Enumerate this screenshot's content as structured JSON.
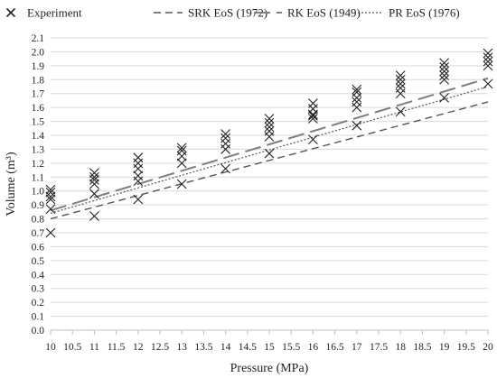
{
  "chart_data": {
    "type": "scatter",
    "title": "",
    "xlabel": "Pressure (MPa)",
    "ylabel": "Volume (m³)",
    "xlim": [
      10,
      20
    ],
    "ylim": [
      0.0,
      2.1
    ],
    "x_ticks": [
      "10",
      "10.5",
      "11",
      "11.5",
      "12",
      "12.5",
      "13",
      "13.5",
      "14",
      "14.5",
      "15",
      "15.5",
      "16",
      "16.5",
      "17",
      "17.5",
      "18",
      "18.5",
      "19",
      "19.5",
      "20"
    ],
    "y_ticks": [
      "0.0",
      "0.1",
      "0.2",
      "0.3",
      "0.4",
      "0.5",
      "0.6",
      "0.7",
      "0.8",
      "0.9",
      "1.0",
      "1.1",
      "1.2",
      "1.3",
      "1.4",
      "1.5",
      "1.6",
      "1.7",
      "1.8",
      "1.9",
      "2.0",
      "2.1"
    ],
    "grid": "horizontal",
    "legend_position": "top",
    "series": [
      {
        "name": "Experiment",
        "kind": "markers",
        "marker": "x",
        "color": "#222222",
        "points": [
          [
            10,
            0.7
          ],
          [
            10,
            0.87
          ],
          [
            10,
            0.94
          ],
          [
            10,
            0.96
          ],
          [
            10,
            0.99
          ],
          [
            10,
            1.01
          ],
          [
            11,
            0.82
          ],
          [
            11,
            0.98
          ],
          [
            11,
            1.05
          ],
          [
            11,
            1.08
          ],
          [
            11,
            1.1
          ],
          [
            11,
            1.13
          ],
          [
            12,
            0.94
          ],
          [
            12,
            1.07
          ],
          [
            12,
            1.11
          ],
          [
            12,
            1.16
          ],
          [
            12,
            1.2
          ],
          [
            12,
            1.24
          ],
          [
            13,
            1.05
          ],
          [
            13,
            1.2
          ],
          [
            13,
            1.25
          ],
          [
            13,
            1.29
          ],
          [
            13,
            1.31
          ],
          [
            14,
            1.16
          ],
          [
            14,
            1.3
          ],
          [
            14,
            1.34
          ],
          [
            14,
            1.38
          ],
          [
            14,
            1.41
          ],
          [
            15,
            1.27
          ],
          [
            15,
            1.39
          ],
          [
            15,
            1.43
          ],
          [
            15,
            1.46
          ],
          [
            15,
            1.49
          ],
          [
            15,
            1.52
          ],
          [
            16,
            1.37
          ],
          [
            16,
            1.52
          ],
          [
            16,
            1.54
          ],
          [
            16,
            1.55
          ],
          [
            16,
            1.59
          ],
          [
            16,
            1.63
          ],
          [
            17,
            1.47
          ],
          [
            17,
            1.6
          ],
          [
            17,
            1.64
          ],
          [
            17,
            1.67
          ],
          [
            17,
            1.71
          ],
          [
            17,
            1.73
          ],
          [
            18,
            1.57
          ],
          [
            18,
            1.7
          ],
          [
            18,
            1.74
          ],
          [
            18,
            1.77
          ],
          [
            18,
            1.8
          ],
          [
            18,
            1.83
          ],
          [
            19,
            1.67
          ],
          [
            19,
            1.8
          ],
          [
            19,
            1.83
          ],
          [
            19,
            1.86
          ],
          [
            19,
            1.89
          ],
          [
            19,
            1.92
          ],
          [
            20,
            1.77
          ],
          [
            20,
            1.9
          ],
          [
            20,
            1.93
          ],
          [
            20,
            1.96
          ],
          [
            20,
            1.99
          ]
        ]
      },
      {
        "name": "SRK EoS (1972)",
        "kind": "line",
        "dash": "8,5",
        "width": 1.4,
        "color": "#555555",
        "x": [
          10,
          20
        ],
        "y": [
          0.8,
          1.64
        ]
      },
      {
        "name": "RK EoS (1949)",
        "kind": "line",
        "dash": "18,7",
        "width": 2,
        "color": "#7f7f7f",
        "x": [
          10,
          20
        ],
        "y": [
          0.86,
          1.81
        ]
      },
      {
        "name": "PR EoS (1976)",
        "kind": "line",
        "dash": "2,2",
        "width": 1.2,
        "color": "#555555",
        "x": [
          10,
          20
        ],
        "y": [
          0.84,
          1.75
        ]
      }
    ]
  }
}
